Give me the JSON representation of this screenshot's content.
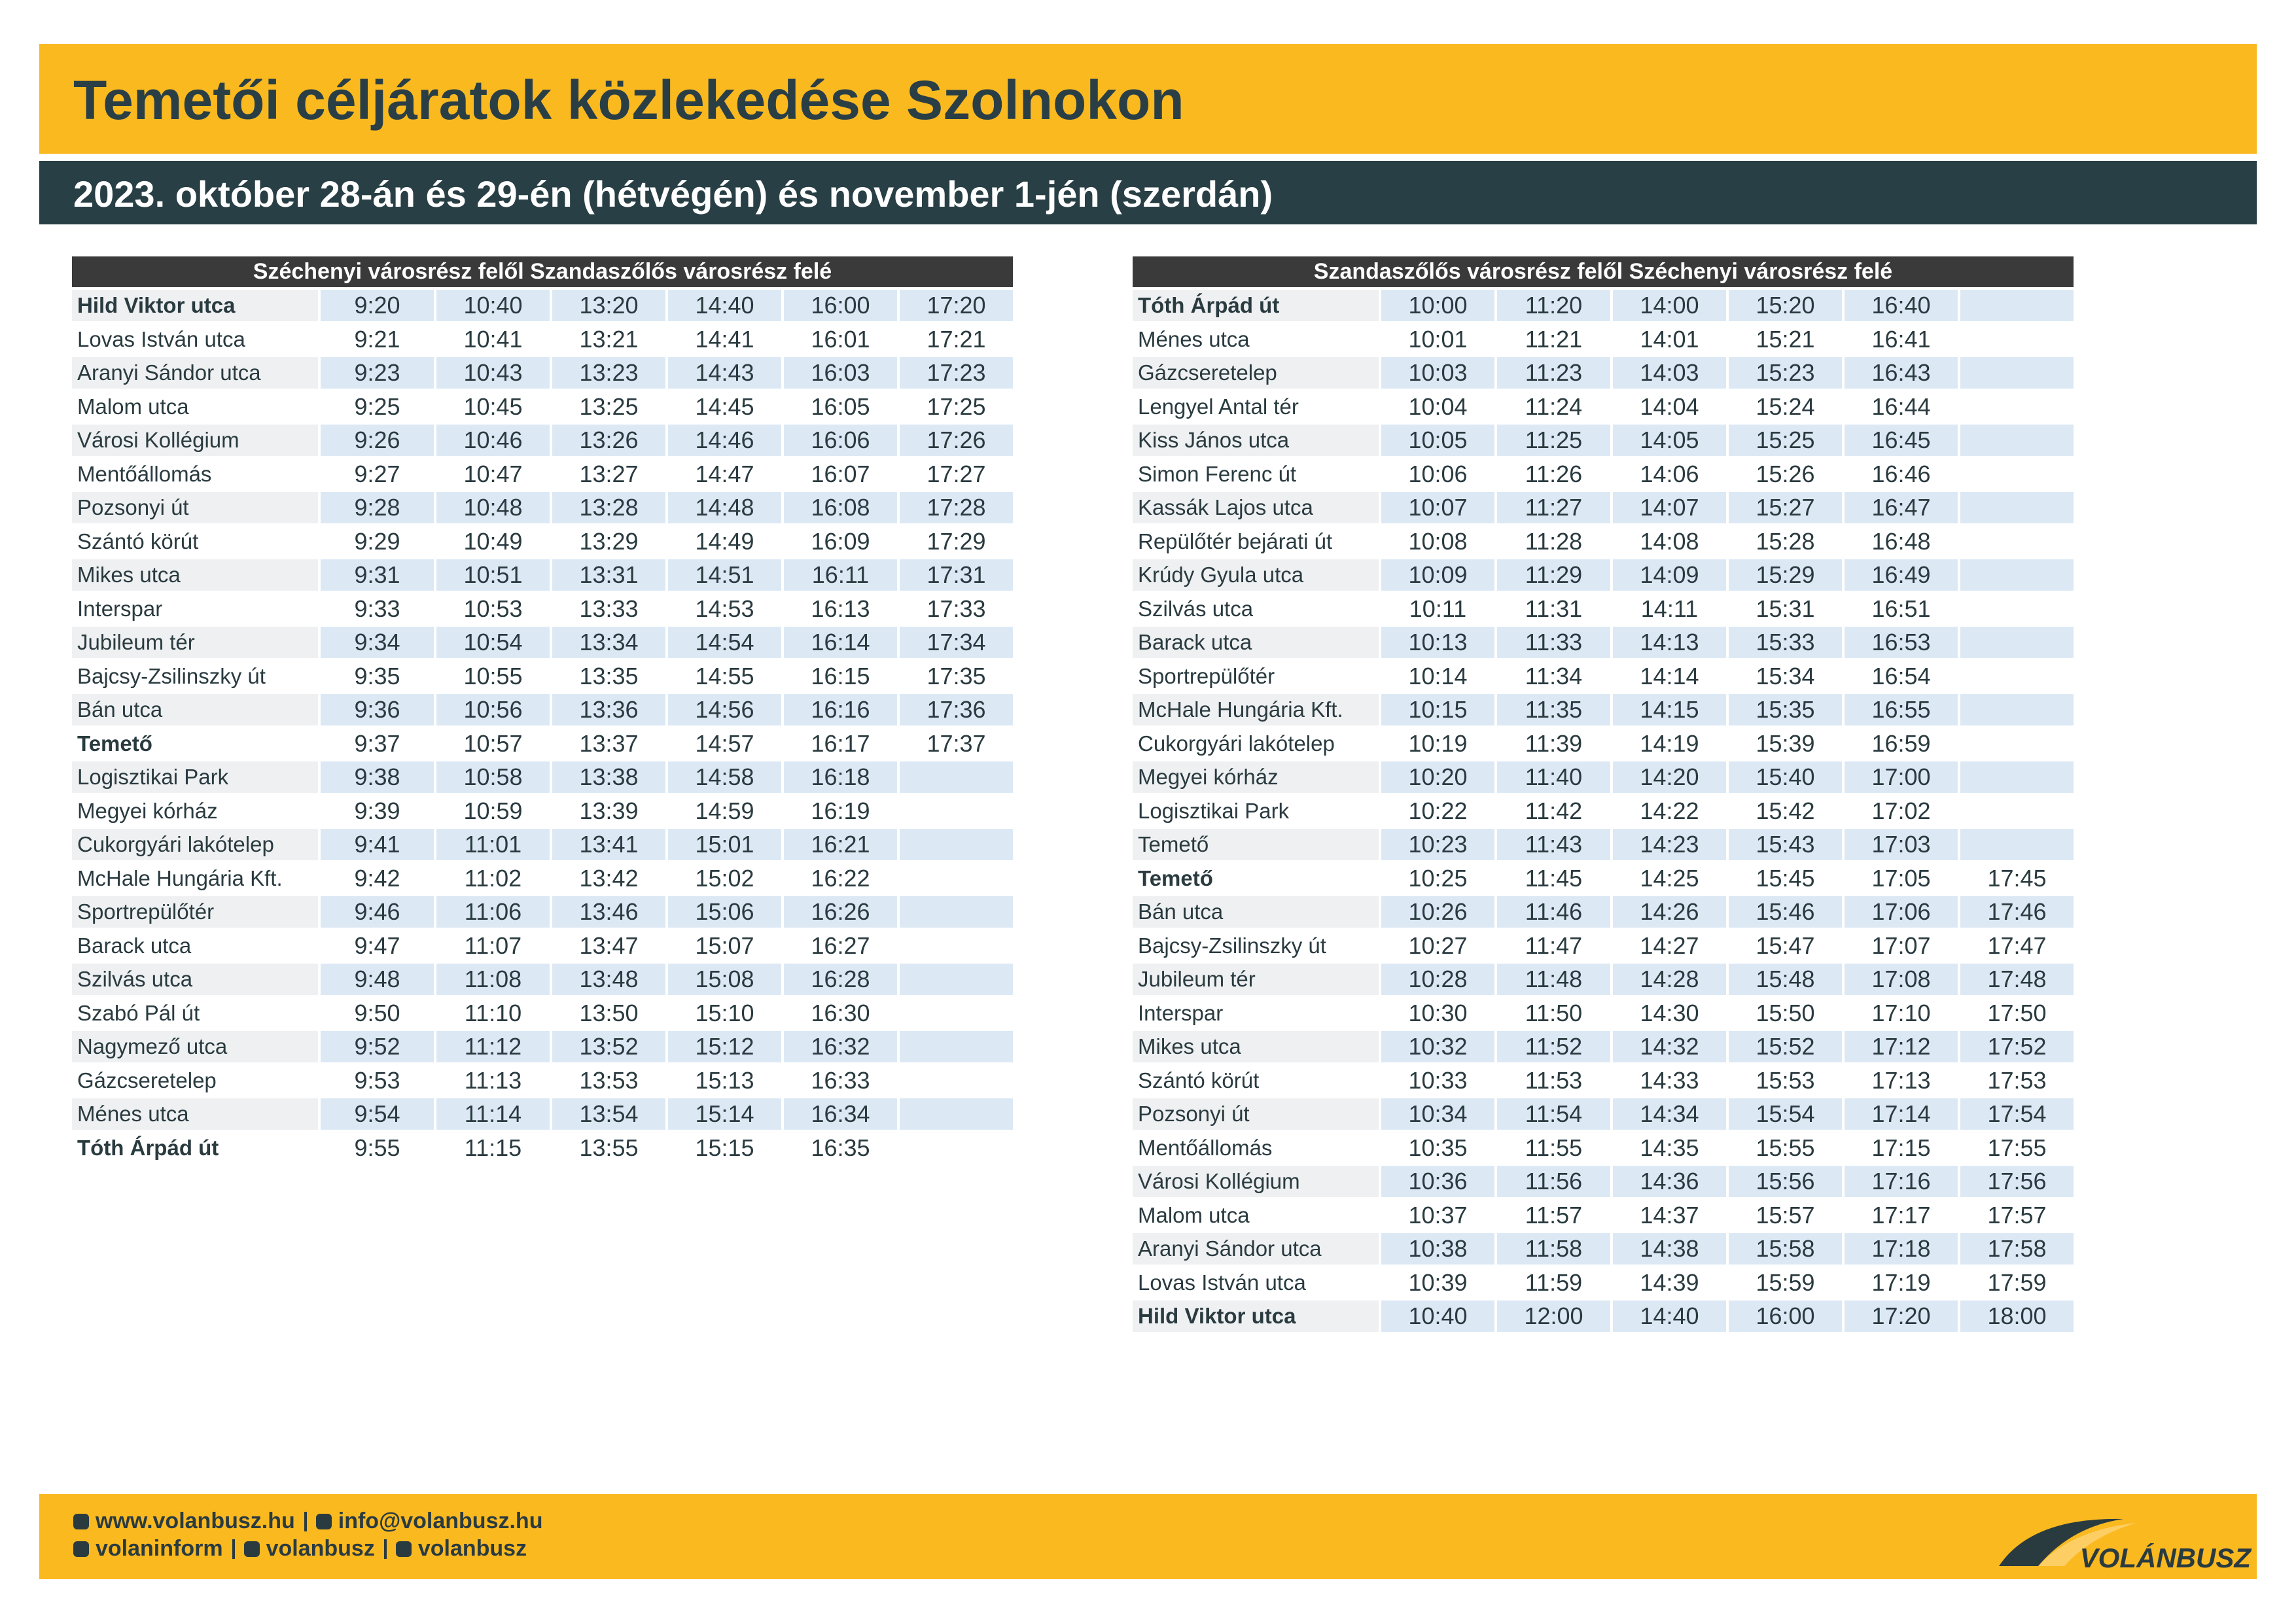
{
  "header": {
    "title": "Temetői céljáratok közlekedése Szolnokon",
    "subtitle": "2023. október 28-án és 29-én (hétvégén) és november 1-jén (szerdán)"
  },
  "tables": [
    {
      "heading": "Széchenyi városrész felől Szandaszőlős városrész felé",
      "rows": [
        {
          "stop": "Hild Viktor utca",
          "bold": true,
          "times": [
            "9:20",
            "10:40",
            "13:20",
            "14:40",
            "16:00",
            "17:20"
          ]
        },
        {
          "stop": "Lovas István utca",
          "times": [
            "9:21",
            "10:41",
            "13:21",
            "14:41",
            "16:01",
            "17:21"
          ]
        },
        {
          "stop": "Aranyi Sándor utca",
          "times": [
            "9:23",
            "10:43",
            "13:23",
            "14:43",
            "16:03",
            "17:23"
          ]
        },
        {
          "stop": "Malom utca",
          "times": [
            "9:25",
            "10:45",
            "13:25",
            "14:45",
            "16:05",
            "17:25"
          ]
        },
        {
          "stop": "Városi Kollégium",
          "times": [
            "9:26",
            "10:46",
            "13:26",
            "14:46",
            "16:06",
            "17:26"
          ]
        },
        {
          "stop": "Mentőállomás",
          "times": [
            "9:27",
            "10:47",
            "13:27",
            "14:47",
            "16:07",
            "17:27"
          ]
        },
        {
          "stop": "Pozsonyi út",
          "times": [
            "9:28",
            "10:48",
            "13:28",
            "14:48",
            "16:08",
            "17:28"
          ]
        },
        {
          "stop": "Szántó körút",
          "times": [
            "9:29",
            "10:49",
            "13:29",
            "14:49",
            "16:09",
            "17:29"
          ]
        },
        {
          "stop": "Mikes utca",
          "times": [
            "9:31",
            "10:51",
            "13:31",
            "14:51",
            "16:11",
            "17:31"
          ]
        },
        {
          "stop": "Interspar",
          "times": [
            "9:33",
            "10:53",
            "13:33",
            "14:53",
            "16:13",
            "17:33"
          ]
        },
        {
          "stop": "Jubileum tér",
          "times": [
            "9:34",
            "10:54",
            "13:34",
            "14:54",
            "16:14",
            "17:34"
          ]
        },
        {
          "stop": "Bajcsy-Zsilinszky út",
          "times": [
            "9:35",
            "10:55",
            "13:35",
            "14:55",
            "16:15",
            "17:35"
          ]
        },
        {
          "stop": "Bán utca",
          "times": [
            "9:36",
            "10:56",
            "13:36",
            "14:56",
            "16:16",
            "17:36"
          ]
        },
        {
          "stop": "Temető",
          "bold": true,
          "times": [
            "9:37",
            "10:57",
            "13:37",
            "14:57",
            "16:17",
            "17:37"
          ]
        },
        {
          "stop": "Logisztikai Park",
          "times": [
            "9:38",
            "10:58",
            "13:38",
            "14:58",
            "16:18"
          ]
        },
        {
          "stop": "Megyei kórház",
          "times": [
            "9:39",
            "10:59",
            "13:39",
            "14:59",
            "16:19"
          ]
        },
        {
          "stop": "Cukorgyári lakótelep",
          "times": [
            "9:41",
            "11:01",
            "13:41",
            "15:01",
            "16:21"
          ]
        },
        {
          "stop": "McHale Hungária Kft.",
          "times": [
            "9:42",
            "11:02",
            "13:42",
            "15:02",
            "16:22"
          ]
        },
        {
          "stop": "Sportrepülőtér",
          "times": [
            "9:46",
            "11:06",
            "13:46",
            "15:06",
            "16:26"
          ]
        },
        {
          "stop": "Barack utca",
          "times": [
            "9:47",
            "11:07",
            "13:47",
            "15:07",
            "16:27"
          ]
        },
        {
          "stop": "Szilvás utca",
          "times": [
            "9:48",
            "11:08",
            "13:48",
            "15:08",
            "16:28"
          ]
        },
        {
          "stop": "Szabó Pál út",
          "times": [
            "9:50",
            "11:10",
            "13:50",
            "15:10",
            "16:30"
          ]
        },
        {
          "stop": "Nagymező utca",
          "times": [
            "9:52",
            "11:12",
            "13:52",
            "15:12",
            "16:32"
          ]
        },
        {
          "stop": "Gázcseretelep",
          "times": [
            "9:53",
            "11:13",
            "13:53",
            "15:13",
            "16:33"
          ]
        },
        {
          "stop": "Ménes utca",
          "times": [
            "9:54",
            "11:14",
            "13:54",
            "15:14",
            "16:34"
          ]
        },
        {
          "stop": "Tóth Árpád út",
          "bold": true,
          "times": [
            "9:55",
            "11:15",
            "13:55",
            "15:15",
            "16:35"
          ]
        }
      ]
    },
    {
      "heading": "Szandaszőlős városrész felől Széchenyi városrész felé",
      "rows": [
        {
          "stop": "Tóth Árpád út",
          "bold": true,
          "times": [
            "10:00",
            "11:20",
            "14:00",
            "15:20",
            "16:40"
          ]
        },
        {
          "stop": "Ménes utca",
          "times": [
            "10:01",
            "11:21",
            "14:01",
            "15:21",
            "16:41"
          ]
        },
        {
          "stop": "Gázcseretelep",
          "times": [
            "10:03",
            "11:23",
            "14:03",
            "15:23",
            "16:43"
          ]
        },
        {
          "stop": "Lengyel Antal tér",
          "times": [
            "10:04",
            "11:24",
            "14:04",
            "15:24",
            "16:44"
          ]
        },
        {
          "stop": "Kiss János utca",
          "times": [
            "10:05",
            "11:25",
            "14:05",
            "15:25",
            "16:45"
          ]
        },
        {
          "stop": "Simon Ferenc út",
          "times": [
            "10:06",
            "11:26",
            "14:06",
            "15:26",
            "16:46"
          ]
        },
        {
          "stop": "Kassák Lajos utca",
          "times": [
            "10:07",
            "11:27",
            "14:07",
            "15:27",
            "16:47"
          ]
        },
        {
          "stop": "Repülőtér bejárati út",
          "times": [
            "10:08",
            "11:28",
            "14:08",
            "15:28",
            "16:48"
          ]
        },
        {
          "stop": "Krúdy Gyula utca",
          "times": [
            "10:09",
            "11:29",
            "14:09",
            "15:29",
            "16:49"
          ]
        },
        {
          "stop": "Szilvás utca",
          "times": [
            "10:11",
            "11:31",
            "14:11",
            "15:31",
            "16:51"
          ]
        },
        {
          "stop": "Barack utca",
          "times": [
            "10:13",
            "11:33",
            "14:13",
            "15:33",
            "16:53"
          ]
        },
        {
          "stop": "Sportrepülőtér",
          "times": [
            "10:14",
            "11:34",
            "14:14",
            "15:34",
            "16:54"
          ]
        },
        {
          "stop": "McHale Hungária Kft.",
          "times": [
            "10:15",
            "11:35",
            "14:15",
            "15:35",
            "16:55"
          ]
        },
        {
          "stop": "Cukorgyári lakótelep",
          "times": [
            "10:19",
            "11:39",
            "14:19",
            "15:39",
            "16:59"
          ]
        },
        {
          "stop": "Megyei kórház",
          "times": [
            "10:20",
            "11:40",
            "14:20",
            "15:40",
            "17:00"
          ]
        },
        {
          "stop": "Logisztikai Park",
          "times": [
            "10:22",
            "11:42",
            "14:22",
            "15:42",
            "17:02"
          ]
        },
        {
          "stop": "Temető",
          "times": [
            "10:23",
            "11:43",
            "14:23",
            "15:43",
            "17:03"
          ]
        },
        {
          "stop": "Temető",
          "bold": true,
          "times": [
            "10:25",
            "11:45",
            "14:25",
            "15:45",
            "17:05",
            "17:45"
          ]
        },
        {
          "stop": "Bán utca",
          "times": [
            "10:26",
            "11:46",
            "14:26",
            "15:46",
            "17:06",
            "17:46"
          ]
        },
        {
          "stop": "Bajcsy-Zsilinszky út",
          "times": [
            "10:27",
            "11:47",
            "14:27",
            "15:47",
            "17:07",
            "17:47"
          ]
        },
        {
          "stop": "Jubileum tér",
          "times": [
            "10:28",
            "11:48",
            "14:28",
            "15:48",
            "17:08",
            "17:48"
          ]
        },
        {
          "stop": "Interspar",
          "times": [
            "10:30",
            "11:50",
            "14:30",
            "15:50",
            "17:10",
            "17:50"
          ]
        },
        {
          "stop": "Mikes utca",
          "times": [
            "10:32",
            "11:52",
            "14:32",
            "15:52",
            "17:12",
            "17:52"
          ]
        },
        {
          "stop": "Szántó körút",
          "times": [
            "10:33",
            "11:53",
            "14:33",
            "15:53",
            "17:13",
            "17:53"
          ]
        },
        {
          "stop": "Pozsonyi út",
          "times": [
            "10:34",
            "11:54",
            "14:34",
            "15:54",
            "17:14",
            "17:54"
          ]
        },
        {
          "stop": "Mentőállomás",
          "times": [
            "10:35",
            "11:55",
            "14:35",
            "15:55",
            "17:15",
            "17:55"
          ]
        },
        {
          "stop": "Városi Kollégium",
          "times": [
            "10:36",
            "11:56",
            "14:36",
            "15:56",
            "17:16",
            "17:56"
          ]
        },
        {
          "stop": "Malom utca",
          "times": [
            "10:37",
            "11:57",
            "14:37",
            "15:57",
            "17:17",
            "17:57"
          ]
        },
        {
          "stop": "Aranyi Sándor utca",
          "times": [
            "10:38",
            "11:58",
            "14:38",
            "15:58",
            "17:18",
            "17:58"
          ]
        },
        {
          "stop": "Lovas István utca",
          "times": [
            "10:39",
            "11:59",
            "14:39",
            "15:59",
            "17:19",
            "17:59"
          ]
        },
        {
          "stop": "Hild Viktor utca",
          "bold": true,
          "times": [
            "10:40",
            "12:00",
            "14:40",
            "16:00",
            "17:20",
            "18:00"
          ]
        }
      ]
    }
  ],
  "footer": {
    "lines": [
      [
        "www.volanbusz.hu",
        "info@volanbusz.hu"
      ],
      [
        "volaninform",
        "volanbusz",
        "volanbusz"
      ]
    ],
    "logo": "VOLÁNBUSZ"
  }
}
